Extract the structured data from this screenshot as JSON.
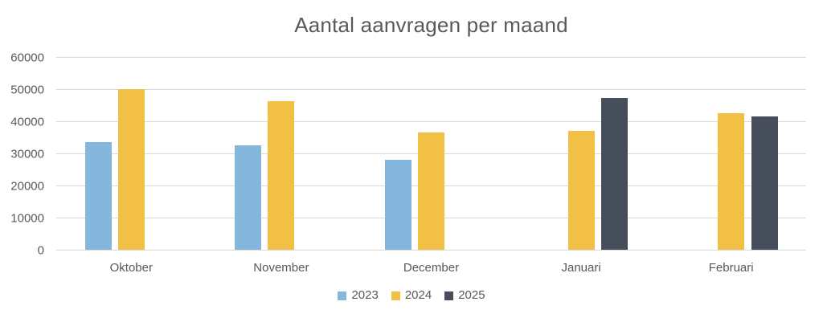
{
  "title": "Aantal aanvragen per maand",
  "chart_data": {
    "type": "bar",
    "title": "Aantal aanvragen per maand",
    "categories": [
      "Oktober",
      "November",
      "December",
      "Januari",
      "Februari"
    ],
    "series": [
      {
        "name": "2023",
        "color": "#85B6DB",
        "values": [
          33400,
          32600,
          28000,
          null,
          null
        ]
      },
      {
        "name": "2024",
        "color": "#F1C044",
        "values": [
          50000,
          46300,
          36500,
          37000,
          42500
        ]
      },
      {
        "name": "2025",
        "color": "#464E5C",
        "values": [
          null,
          null,
          null,
          47200,
          41500
        ]
      }
    ],
    "xlabel": "",
    "ylabel": "",
    "ylim": [
      0,
      60000
    ],
    "ytick_interval": 10000,
    "ytick_labels": [
      "0",
      "10000",
      "20000",
      "30000",
      "40000",
      "50000",
      "60000"
    ],
    "grid": true,
    "gridline_color": "#D9D9D9",
    "text_color": "#595959",
    "background_color": "#FFFFFF",
    "legend_position": "bottom",
    "legend_entries": [
      "2023",
      "2024",
      "2025"
    ]
  }
}
